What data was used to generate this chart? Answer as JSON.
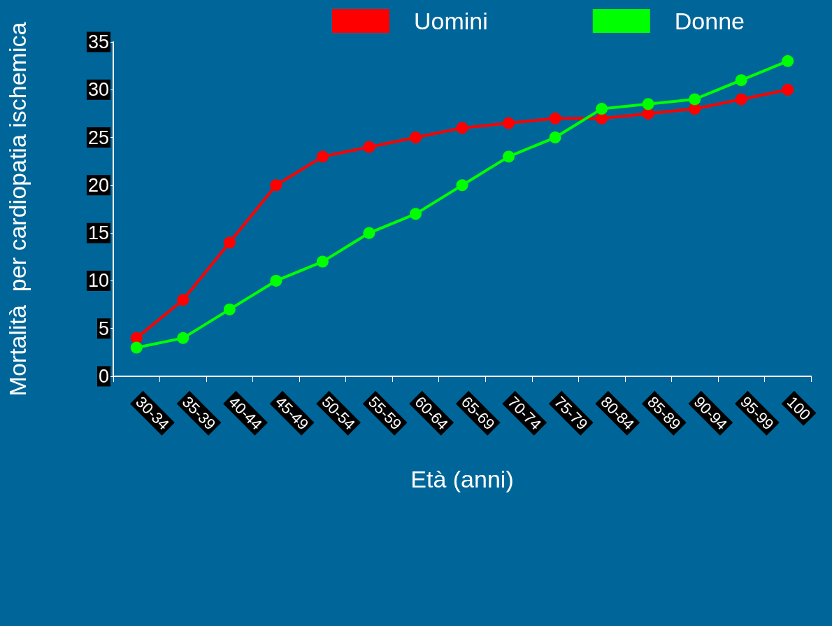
{
  "chart_data": {
    "type": "line",
    "xlabel": "Età (anni)",
    "ylabel": "Mortalità  per cardiopatia ischemica",
    "categories": [
      "30-34",
      "35-39",
      "40-44",
      "45-49",
      "50-54",
      "55-59",
      "60-64",
      "65-69",
      "70-74",
      "75-79",
      "80-84",
      "85-89",
      "90-94",
      "95-99",
      "100"
    ],
    "series": [
      {
        "name": "Uomini",
        "color": "#ff0000",
        "values": [
          4,
          8,
          14,
          20,
          23,
          24,
          25,
          26,
          26.5,
          27,
          27,
          27.5,
          28,
          29,
          30
        ]
      },
      {
        "name": "Donne",
        "color": "#00ff00",
        "values": [
          3,
          4,
          7,
          10,
          12,
          15,
          17,
          20,
          23,
          25,
          28,
          28.5,
          29,
          31,
          33
        ]
      }
    ],
    "ylim": [
      0,
      35
    ],
    "yticks": [
      0,
      5,
      10,
      15,
      20,
      25,
      30,
      35
    ],
    "grid": false,
    "legend": "top",
    "marker": "circle",
    "line_style": "solid"
  }
}
